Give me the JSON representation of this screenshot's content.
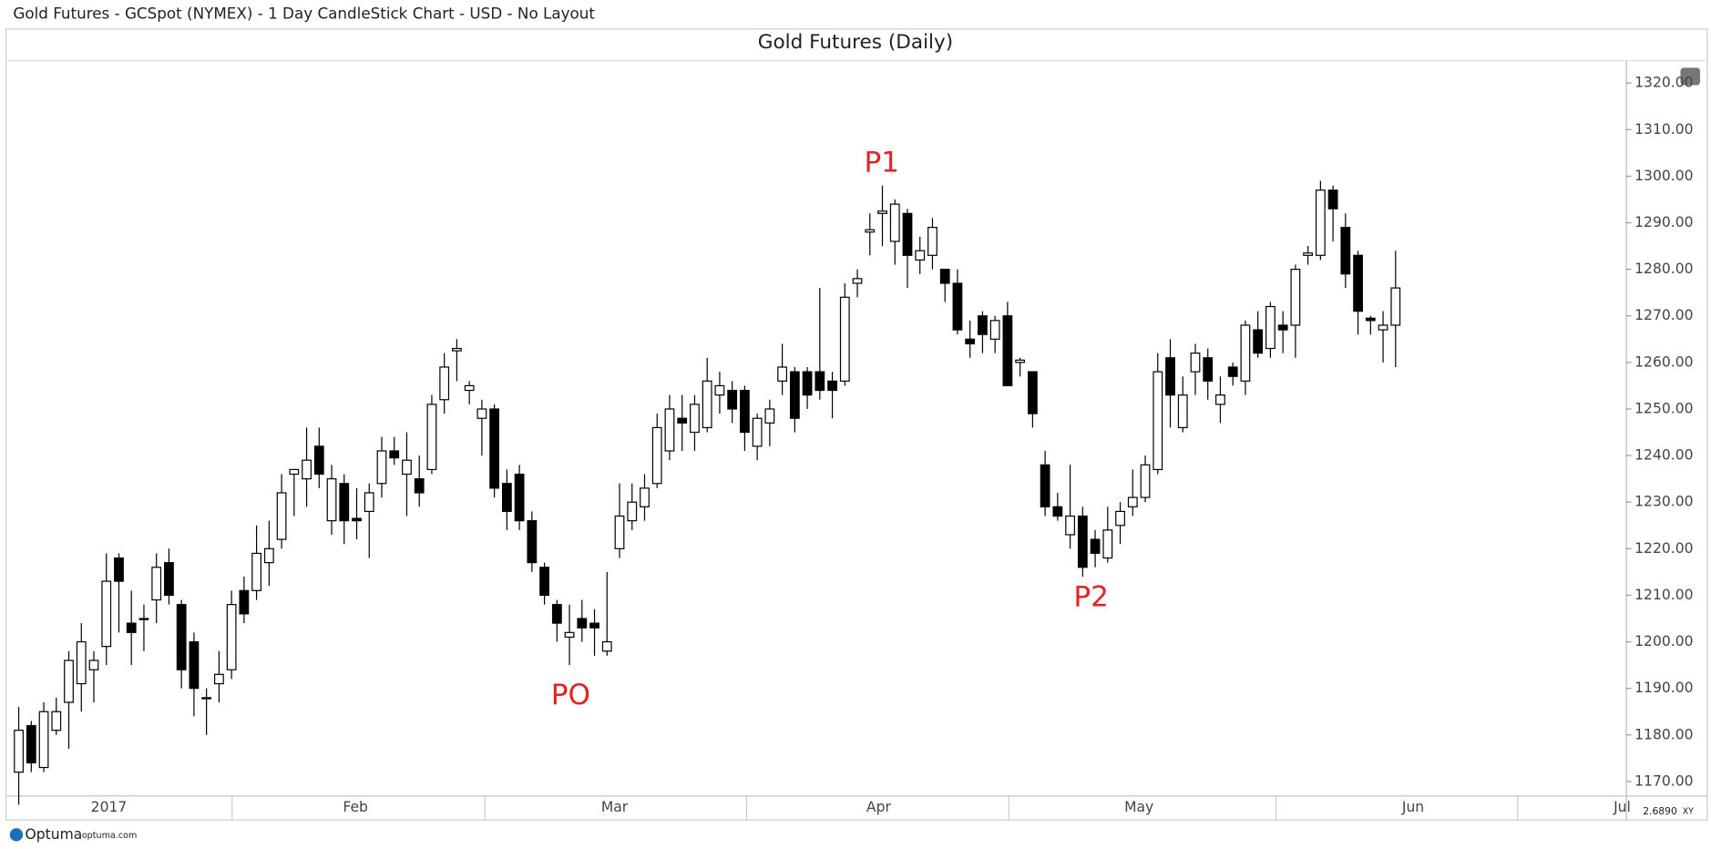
{
  "header": {
    "title": "Gold Futures - GCSpot (NYMEX) - 1 Day CandleStick Chart - USD - No Layout"
  },
  "footer": {
    "brand": "Optuma",
    "site": "optuma.com",
    "scale": "2.6890",
    "mode": "XY"
  },
  "chart_data": {
    "type": "candlestick",
    "title": "Gold Futures (Daily)",
    "annotations": [
      "PO",
      "P1",
      "P2"
    ],
    "up_color": "#ffffff",
    "down_color": "#000000",
    "open": [
      1172,
      1182,
      1173,
      1181,
      1187,
      1191,
      1194,
      1199,
      1218,
      1204,
      1205,
      1209,
      1217,
      1208,
      1200,
      1188,
      1191,
      1194,
      1211,
      1211,
      1217,
      1222,
      1236,
      1235,
      1242,
      1226,
      1234,
      1226.5,
      1228,
      1234,
      1241,
      1236,
      1235,
      1237,
      1252,
      1262.5,
      1254,
      1248,
      1250,
      1234,
      1236,
      1226,
      1216,
      1208,
      1201,
      1205,
      1204,
      1198,
      1220,
      1226,
      1229,
      1234,
      1241,
      1248,
      1245,
      1246,
      1253,
      1254,
      1254,
      1242,
      1247,
      1256,
      1258,
      1258,
      1258,
      1256,
      1256,
      1277,
      1288,
      1292,
      1286,
      1292,
      1282,
      1283,
      1280,
      1277,
      1265,
      1270,
      1265,
      1270,
      1260,
      1258,
      1238,
      1229,
      1223,
      1227,
      1222,
      1218,
      1225,
      1229,
      1231,
      1237,
      1261,
      1246,
      1258,
      1261,
      1251,
      1259,
      1256,
      1267,
      1263,
      1268,
      1268,
      1283,
      1283,
      1297,
      1289,
      1283,
      1269.5,
      1267,
      1268
    ],
    "high": [
      1186,
      1183,
      1187,
      1188,
      1198,
      1204,
      1198,
      1219,
      1219,
      1211,
      1208,
      1219,
      1220,
      1209,
      1202,
      1190,
      1198,
      1211,
      1214,
      1225,
      1226,
      1236,
      1237,
      1246,
      1246,
      1238,
      1236,
      1233,
      1234,
      1244,
      1244,
      1245,
      1240,
      1253,
      1262,
      1265,
      1256,
      1252,
      1251,
      1237,
      1238,
      1228,
      1217,
      1209,
      1208,
      1209,
      1207,
      1215,
      1234,
      1234,
      1236,
      1249,
      1253,
      1253,
      1253,
      1261,
      1258,
      1256,
      1255,
      1249,
      1252,
      1264,
      1259,
      1259,
      1276,
      1258,
      1277,
      1280,
      1292,
      1298,
      1295,
      1293,
      1287,
      1291,
      1280,
      1280,
      1269,
      1271,
      1270,
      1273,
      1261,
      1258,
      1241,
      1232,
      1238,
      1229,
      1224,
      1229,
      1230,
      1237,
      1240,
      1262,
      1265,
      1257,
      1264,
      1263,
      1257,
      1260,
      1269,
      1271,
      1273,
      1271,
      1281,
      1285,
      1299,
      1298,
      1292,
      1284,
      1270,
      1271,
      1284
    ],
    "low": [
      1165,
      1172,
      1172,
      1180,
      1177,
      1185,
      1187,
      1195,
      1202,
      1195,
      1198,
      1204,
      1208,
      1190,
      1184,
      1180,
      1187,
      1192,
      1204,
      1209,
      1212,
      1220,
      1227,
      1229,
      1233,
      1223,
      1221,
      1222,
      1218,
      1231,
      1238,
      1227,
      1229,
      1236,
      1249,
      1256,
      1251,
      1240,
      1231,
      1224,
      1224,
      1215,
      1208,
      1200,
      1195,
      1200,
      1197,
      1197,
      1218,
      1224,
      1226,
      1233,
      1239,
      1241,
      1241,
      1245,
      1249,
      1247,
      1241,
      1239,
      1242,
      1253,
      1245,
      1250,
      1252,
      1248,
      1255,
      1274,
      1283,
      1285,
      1281,
      1276,
      1279,
      1280,
      1273,
      1266,
      1261,
      1262,
      1262,
      1255,
      1257,
      1246,
      1227,
      1226,
      1220,
      1214,
      1216,
      1217,
      1221,
      1227,
      1230,
      1236,
      1246,
      1245,
      1253,
      1252,
      1247,
      1255,
      1253,
      1261,
      1261,
      1262,
      1261,
      1281,
      1282,
      1286,
      1276,
      1266,
      1266,
      1260,
      1259
    ],
    "close": [
      1181,
      1174,
      1185,
      1185,
      1196,
      1200,
      1196,
      1213,
      1213,
      1202,
      1205,
      1216,
      1210,
      1194,
      1190,
      1188,
      1193,
      1208,
      1206,
      1219,
      1220,
      1232,
      1237,
      1239,
      1236,
      1235,
      1226,
      1226,
      1232,
      1241,
      1239.5,
      1239,
      1232,
      1251,
      1259,
      1263,
      1255,
      1250,
      1233,
      1228,
      1226,
      1217,
      1210,
      1204,
      1202,
      1203,
      1203,
      1200,
      1227,
      1230,
      1233,
      1246,
      1250,
      1247,
      1251,
      1256,
      1255,
      1250,
      1245,
      1248,
      1250,
      1259,
      1248,
      1253,
      1254,
      1254,
      1274,
      1278,
      1288.5,
      1292.5,
      1294,
      1283,
      1284,
      1289,
      1277,
      1267,
      1264,
      1266,
      1269,
      1255,
      1260.5,
      1249,
      1229,
      1227,
      1227,
      1216,
      1219,
      1224,
      1228,
      1231,
      1238,
      1258,
      1253,
      1253,
      1262,
      1256,
      1253,
      1257,
      1268,
      1262,
      1272,
      1267,
      1280,
      1283.5,
      1297,
      1293,
      1279,
      1271,
      1269,
      1268,
      1276
    ],
    "xlim": [
      -0.8,
      128.4
    ],
    "xticks": [
      {
        "value": 7.2,
        "label": "2017"
      },
      {
        "value": 26.9,
        "label": "Feb"
      },
      {
        "value": 47.6,
        "label": "Mar"
      },
      {
        "value": 68.7,
        "label": "Apr"
      },
      {
        "value": 89.5,
        "label": "May"
      },
      {
        "value": 111.4,
        "label": "Jun"
      },
      {
        "value": 128.1,
        "label": "Jul"
      }
    ],
    "ylim": [
      1167,
      1324.7
    ],
    "yticks": [
      {
        "value": 1170,
        "label": "1170.00"
      },
      {
        "value": 1180,
        "label": "1180.00"
      },
      {
        "value": 1190,
        "label": "1190.00"
      },
      {
        "value": 1200,
        "label": "1200.00"
      },
      {
        "value": 1210,
        "label": "1210.00"
      },
      {
        "value": 1220,
        "label": "1220.00"
      },
      {
        "value": 1230,
        "label": "1230.00"
      },
      {
        "value": 1240,
        "label": "1240.00"
      },
      {
        "value": 1250,
        "label": "1250.00"
      },
      {
        "value": 1260,
        "label": "1260.00"
      },
      {
        "value": 1270,
        "label": "1270.00"
      },
      {
        "value": 1280,
        "label": "1280.00"
      },
      {
        "value": 1290,
        "label": "1290.00"
      },
      {
        "value": 1300,
        "label": "1300.00"
      },
      {
        "value": 1310,
        "label": "1310.00"
      },
      {
        "value": 1320,
        "label": "1320.00"
      }
    ]
  }
}
